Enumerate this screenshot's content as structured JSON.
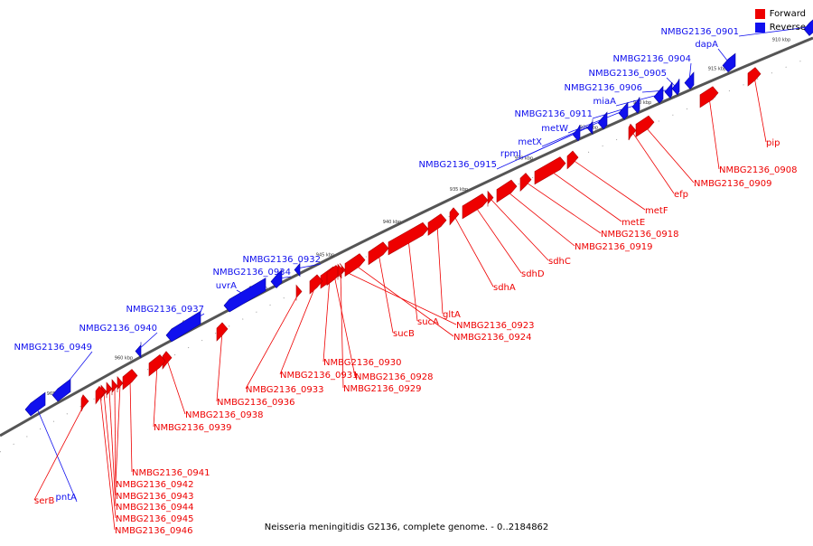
{
  "legend": {
    "forward": "Forward",
    "reverse": "Reverse"
  },
  "caption": "Neisseria meningitidis G2136, complete genome. - 0..2184862",
  "colors": {
    "forward": "#ee0000",
    "reverse": "#1010ee",
    "backbone": "#555555"
  },
  "ticks": [
    "910 kbp",
    "915 kbp",
    "920 kbp",
    "925 kbp",
    "930 kbp",
    "935 kbp",
    "940 kbp",
    "945 kbp",
    "950 kbp",
    "955 kbp",
    "960 kbp",
    "965 kbp"
  ],
  "reverse_labels": [
    "NMBG2136_0901",
    "dapA",
    "NMBG2136_0904",
    "NMBG2136_0905",
    "NMBG2136_0906",
    "miaA",
    "NMBG2136_0911",
    "metW",
    "metX",
    "rpmJ",
    "NMBG2136_0915",
    "NMBG2136_0932",
    "NMBG2136_0934",
    "uvrA",
    "NMBG2136_0937",
    "NMBG2136_0940",
    "NMBG2136_0949",
    "pntA"
  ],
  "forward_labels": [
    "pip",
    "NMBG2136_0908",
    "NMBG2136_0909",
    "efp",
    "metF",
    "metE",
    "NMBG2136_0918",
    "NMBG2136_0919",
    "sdhC",
    "sdhD",
    "sdhA",
    "gltA",
    "sucA",
    "sucB",
    "NMBG2136_0923",
    "NMBG2136_0924",
    "NMBG2136_0930",
    "NMBG2136_0931",
    "NMBG2136_0933",
    "NMBG2136_0928",
    "NMBG2136_0929",
    "NMBG2136_0936",
    "NMBG2136_0938",
    "NMBG2136_0939",
    "NMBG2136_0941",
    "NMBG2136_0942",
    "NMBG2136_0943",
    "NMBG2136_0944",
    "NMBG2136_0945",
    "NMBG2136_0946",
    "serB"
  ]
}
